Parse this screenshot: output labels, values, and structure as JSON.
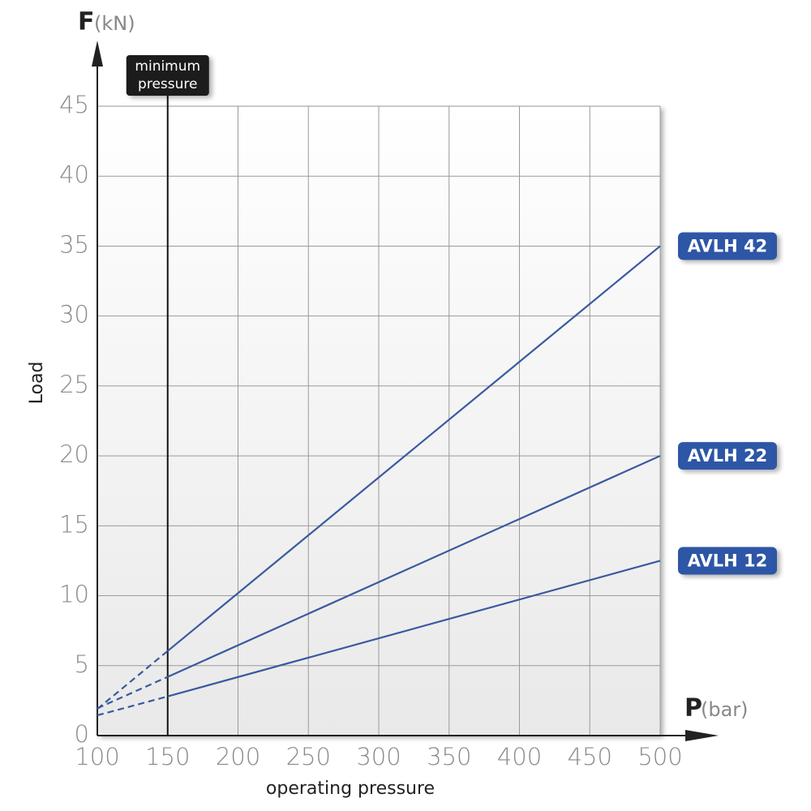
{
  "chart_data": {
    "type": "line",
    "y_symbol": "F",
    "y_unit": "(kN)",
    "x_symbol": "P",
    "x_unit": "(bar)",
    "ylabel": "Load",
    "xlabel": "operating pressure",
    "annotation": {
      "lines": [
        "minimum",
        "pressure"
      ],
      "x": 150
    },
    "x": [
      100,
      150,
      500
    ],
    "series": [
      {
        "name": "AVLH 42",
        "color": "#3a5aa0",
        "values": [
          1.9,
          6.05,
          35
        ]
      },
      {
        "name": "AVLH 22",
        "color": "#3a5aa0",
        "values": [
          1.95,
          4.2,
          20
        ]
      },
      {
        "name": "AVLH 12",
        "color": "#3a5aa0",
        "values": [
          1.45,
          2.8,
          12.5
        ]
      }
    ],
    "xlim": [
      100,
      500
    ],
    "xticks": [
      100,
      150,
      200,
      250,
      300,
      350,
      400,
      450,
      500
    ],
    "ylim": [
      0,
      45
    ],
    "yticks": [
      0,
      5,
      10,
      15,
      20,
      25,
      30,
      35,
      40,
      45
    ],
    "grid": true
  }
}
